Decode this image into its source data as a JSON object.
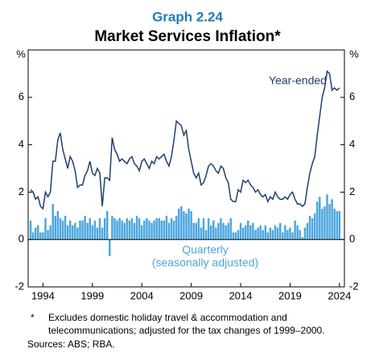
{
  "chart_data": {
    "type": "bar-line",
    "title": "Graph 2.24",
    "subtitle": "Market Services Inflation*",
    "y_unit_left": "%",
    "y_unit_right": "%",
    "x": [
      1992.75,
      1993,
      1993.25,
      1993.5,
      1993.75,
      1994,
      1994.25,
      1994.5,
      1994.75,
      1995,
      1995.25,
      1995.5,
      1995.75,
      1996,
      1996.25,
      1996.5,
      1996.75,
      1997,
      1997.25,
      1997.5,
      1997.75,
      1998,
      1998.25,
      1998.5,
      1998.75,
      1999,
      1999.25,
      1999.5,
      1999.75,
      2000,
      2000.25,
      2000.5,
      2000.75,
      2001,
      2001.25,
      2001.5,
      2001.75,
      2002,
      2002.25,
      2002.5,
      2002.75,
      2003,
      2003.25,
      2003.5,
      2003.75,
      2004,
      2004.25,
      2004.5,
      2004.75,
      2005,
      2005.25,
      2005.5,
      2005.75,
      2006,
      2006.25,
      2006.5,
      2006.75,
      2007,
      2007.25,
      2007.5,
      2007.75,
      2008,
      2008.25,
      2008.5,
      2008.75,
      2009,
      2009.25,
      2009.5,
      2009.75,
      2010,
      2010.25,
      2010.5,
      2010.75,
      2011,
      2011.25,
      2011.5,
      2011.75,
      2012,
      2012.25,
      2012.5,
      2012.75,
      2013,
      2013.25,
      2013.5,
      2013.75,
      2014,
      2014.25,
      2014.5,
      2014.75,
      2015,
      2015.25,
      2015.5,
      2015.75,
      2016,
      2016.25,
      2016.5,
      2016.75,
      2017,
      2017.25,
      2017.5,
      2017.75,
      2018,
      2018.25,
      2018.5,
      2018.75,
      2019,
      2019.25,
      2019.5,
      2019.75,
      2020,
      2020.25,
      2020.5,
      2020.75,
      2021,
      2021.25,
      2021.5,
      2021.75,
      2022,
      2022.25,
      2022.5,
      2022.75,
      2023,
      2023.25,
      2023.5,
      2023.75,
      2024
    ],
    "series": [
      {
        "name": "Quarterly",
        "color": "#4ba6de",
        "kind": "bar",
        "values": [
          0.8,
          0.3,
          0.5,
          0.6,
          0.3,
          0.3,
          0.9,
          0.4,
          0.6,
          1.5,
          1.0,
          1.2,
          0.9,
          0.8,
          1.0,
          0.6,
          0.8,
          0.6,
          0.7,
          0.5,
          0.8,
          0.8,
          1.0,
          0.7,
          0.9,
          0.6,
          0.8,
          0.5,
          0.9,
          0.5,
          0.9,
          1.2,
          -0.7,
          1.0,
          0.9,
          0.8,
          0.9,
          0.8,
          0.7,
          0.9,
          0.8,
          0.9,
          0.7,
          1.0,
          0.9,
          0.6,
          0.8,
          0.9,
          0.8,
          0.7,
          0.8,
          0.9,
          0.9,
          0.8,
          0.8,
          1.0,
          0.7,
          0.9,
          0.8,
          1.0,
          1.3,
          1.4,
          1.2,
          1.1,
          1.3,
          1.2,
          0.7,
          0.7,
          0.9,
          0.5,
          0.9,
          0.4,
          0.9,
          0.6,
          0.8,
          0.5,
          0.7,
          0.9,
          0.7,
          0.6,
          0.7,
          0.9,
          0.3,
          0.3,
          0.4,
          0.7,
          0.5,
          0.6,
          0.8,
          0.6,
          0.7,
          0.4,
          0.5,
          0.6,
          0.4,
          0.6,
          0.3,
          0.5,
          0.4,
          0.6,
          0.5,
          0.7,
          0.3,
          0.6,
          0.4,
          0.5,
          0.3,
          0.8,
          0.6,
          0.4,
          0.1,
          0.5,
          0.7,
          1.0,
          0.9,
          1.1,
          1.6,
          1.8,
          1.3,
          1.4,
          1.9,
          1.5,
          1.7,
          1.3,
          1.2,
          1.2
        ]
      },
      {
        "name": "Year-ended",
        "color": "#1d3f6e",
        "kind": "line",
        "values": [
          2.1,
          2.0,
          1.7,
          1.8,
          1.4,
          1.3,
          2.0,
          1.8,
          2.0,
          3.3,
          3.3,
          4.2,
          4.5,
          3.8,
          3.4,
          3.0,
          3.5,
          3.3,
          2.9,
          2.2,
          2.3,
          2.3,
          2.7,
          2.9,
          3.3,
          2.8,
          2.7,
          3.0,
          2.8,
          1.4,
          2.6,
          2.6,
          2.5,
          4.3,
          3.8,
          3.6,
          3.3,
          3.4,
          3.3,
          3.2,
          3.4,
          3.5,
          3.2,
          3.1,
          2.9,
          3.3,
          3.4,
          3.2,
          3.0,
          3.3,
          3.2,
          3.5,
          3.4,
          3.5,
          3.6,
          3.3,
          3.1,
          3.5,
          4.2,
          5.0,
          4.9,
          4.8,
          4.4,
          4.6,
          3.8,
          3.3,
          2.8,
          2.6,
          2.8,
          2.3,
          2.4,
          2.7,
          3.1,
          3.2,
          3.1,
          2.9,
          2.8,
          3.1,
          3.0,
          2.6,
          2.4,
          1.7,
          1.6,
          1.6,
          2.1,
          2.0,
          2.5,
          2.4,
          2.5,
          2.3,
          2.2,
          2.0,
          2.1,
          1.9,
          1.8,
          1.9,
          1.6,
          1.8,
          1.7,
          2.0,
          1.8,
          1.7,
          1.7,
          1.8,
          1.7,
          1.9,
          2.0,
          1.7,
          1.5,
          1.5,
          1.4,
          1.5,
          2.2,
          2.8,
          3.2,
          3.5,
          4.4,
          5.2,
          6.0,
          6.4,
          7.1,
          7.0,
          6.3,
          6.4,
          6.3,
          6.4
        ]
      }
    ],
    "annotations": [
      "Year-ended",
      "Quarterly",
      "(seasonally adjusted)"
    ],
    "xlim": [
      1992.5,
      2024.5
    ],
    "xticks": [
      1994,
      1999,
      2004,
      2009,
      2014,
      2019,
      2024
    ],
    "ylim": [
      -2,
      8
    ],
    "yticks": [
      -2,
      0,
      2,
      4,
      6
    ],
    "footnote": {
      "marker": "*",
      "lines": [
        "Excludes domestic holiday travel & accommodation and",
        "telecommunications; adjusted for the tax changes of 1999–2000."
      ]
    },
    "sources": "Sources: ABS; RBA."
  }
}
